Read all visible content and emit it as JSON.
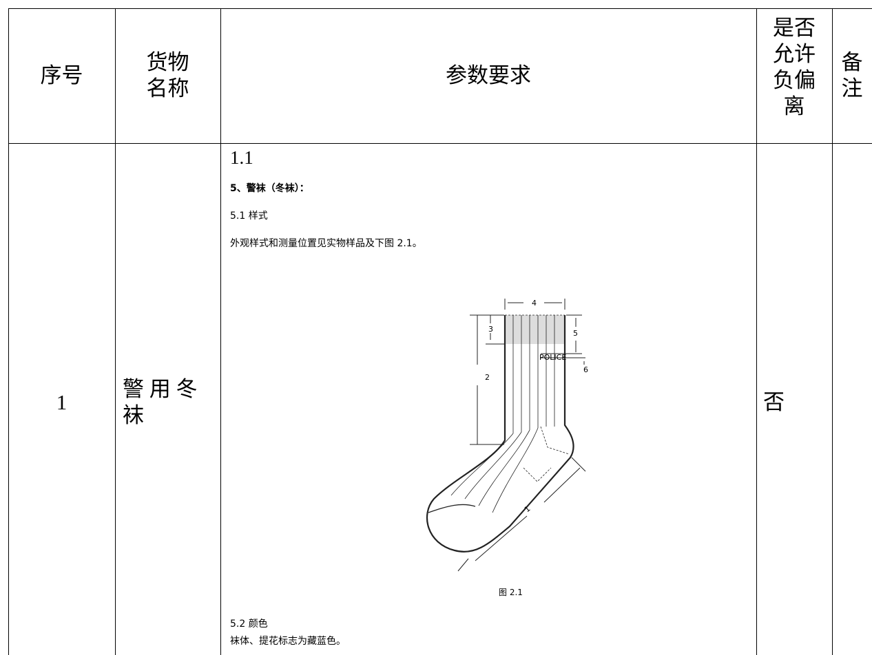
{
  "table": {
    "header": [
      [
        "序号"
      ],
      [
        "货物",
        "名称"
      ],
      [
        "参数要求"
      ],
      [
        "是否",
        "允许",
        "负偏",
        "离"
      ],
      [
        "备",
        "注"
      ]
    ],
    "rows": [
      {
        "index": "1",
        "name": [
          "警 用 冬",
          "袜"
        ],
        "spec": {
          "number": "1.1",
          "heading": "5、警袜（冬袜）：",
          "style_title": "5.1 样式",
          "style_text": "外观样式和测量位置见实物样品及下图 2.1。",
          "figure_labels": [
            "4",
            "3",
            "5",
            "POLICE",
            "6",
            "2",
            "1"
          ],
          "figure_caption": "图 2.1",
          "color_title": "5.2 颜色",
          "color_text": "袜体、提花标志为藏蓝色。"
        },
        "deviation_allowed": "否"
      }
    ]
  }
}
